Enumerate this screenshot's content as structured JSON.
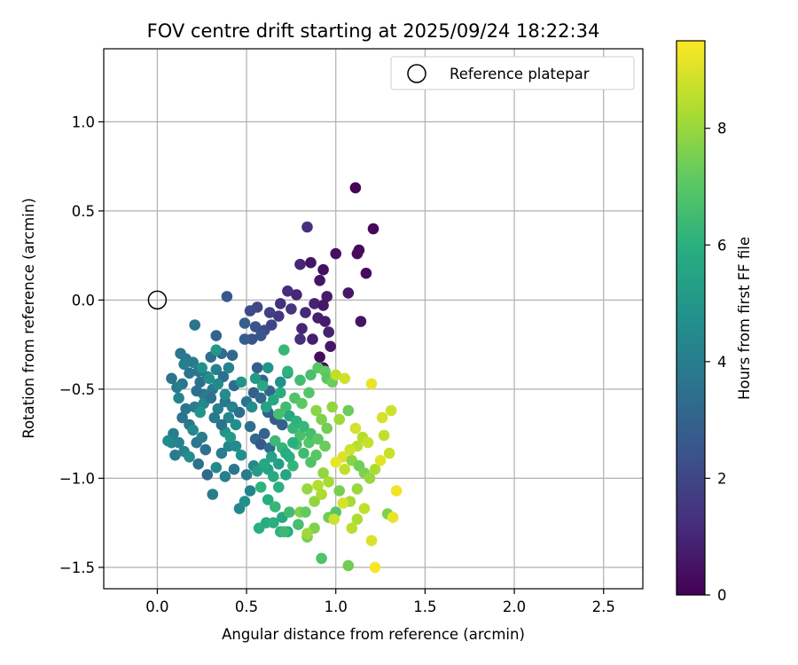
{
  "chart_data": {
    "type": "scatter",
    "title": "FOV centre drift starting at 2025/09/24 18:22:34",
    "xlabel": "Angular distance from reference (arcmin)",
    "ylabel": "Rotation from reference (arcmin)",
    "xlim": [
      -0.3,
      2.72
    ],
    "ylim": [
      -1.62,
      1.41
    ],
    "xticks": [
      0.0,
      0.5,
      1.0,
      1.5,
      2.0,
      2.5
    ],
    "xtick_labels": [
      "0.0",
      "0.5",
      "1.0",
      "1.5",
      "2.0",
      "2.5"
    ],
    "yticks": [
      -1.5,
      -1.0,
      -0.5,
      0.0,
      0.5,
      1.0
    ],
    "ytick_labels": [
      "−1.5",
      "−1.0",
      "−0.5",
      "0.0",
      "0.5",
      "1.0"
    ],
    "grid": true,
    "legend": {
      "position": "top-right",
      "label": "Reference platepar"
    },
    "reference_point": {
      "x": 0.0,
      "y": 0.0
    },
    "colorbar": {
      "label": "Hours from first FF file",
      "range": [
        0,
        9.5
      ],
      "ticks": [
        0,
        2,
        4,
        6,
        8
      ],
      "tick_labels": [
        "0",
        "2",
        "4",
        "6",
        "8"
      ],
      "colormap": "viridis"
    },
    "points": [
      [
        1.11,
        0.63,
        0.1
      ],
      [
        1.21,
        0.4,
        0.2
      ],
      [
        1.13,
        0.28,
        0.2
      ],
      [
        1.12,
        0.26,
        0.3
      ],
      [
        1.0,
        0.26,
        0.4
      ],
      [
        1.17,
        0.15,
        0.3
      ],
      [
        0.86,
        0.21,
        0.5
      ],
      [
        0.93,
        0.17,
        0.4
      ],
      [
        0.91,
        0.11,
        0.5
      ],
      [
        0.8,
        0.2,
        1.0
      ],
      [
        0.84,
        0.41,
        1.3
      ],
      [
        1.07,
        0.04,
        0.6
      ],
      [
        0.73,
        0.05,
        1.2
      ],
      [
        0.78,
        0.03,
        1.0
      ],
      [
        0.95,
        0.02,
        0.7
      ],
      [
        1.14,
        -0.12,
        0.5
      ],
      [
        0.88,
        -0.02,
        0.9
      ],
      [
        0.93,
        -0.03,
        0.6
      ],
      [
        0.69,
        -0.02,
        1.3
      ],
      [
        0.75,
        -0.05,
        1.4
      ],
      [
        0.83,
        -0.07,
        1.1
      ],
      [
        0.9,
        -0.1,
        0.8
      ],
      [
        0.94,
        -0.12,
        0.7
      ],
      [
        0.96,
        -0.18,
        0.9
      ],
      [
        0.81,
        -0.16,
        1.0
      ],
      [
        0.87,
        -0.22,
        0.8
      ],
      [
        0.97,
        -0.26,
        0.6
      ],
      [
        0.8,
        -0.22,
        1.2
      ],
      [
        0.91,
        -0.32,
        0.3
      ],
      [
        0.93,
        -0.38,
        0.4
      ],
      [
        0.68,
        -0.09,
        1.5
      ],
      [
        0.63,
        -0.07,
        1.8
      ],
      [
        0.56,
        -0.04,
        2.0
      ],
      [
        0.52,
        -0.06,
        2.1
      ],
      [
        0.55,
        -0.15,
        2.4
      ],
      [
        0.6,
        -0.17,
        2.2
      ],
      [
        0.64,
        -0.14,
        2.0
      ],
      [
        0.58,
        -0.2,
        2.6
      ],
      [
        0.53,
        -0.22,
        2.5
      ],
      [
        0.49,
        -0.22,
        2.8
      ],
      [
        0.39,
        0.02,
        2.6
      ],
      [
        0.49,
        -0.13,
        2.9
      ],
      [
        0.33,
        -0.2,
        3.0
      ],
      [
        0.42,
        -0.31,
        3.2
      ],
      [
        0.36,
        -0.3,
        3.3
      ],
      [
        0.3,
        -0.32,
        3.4
      ],
      [
        0.21,
        -0.14,
        3.6
      ],
      [
        0.13,
        -0.3,
        3.7
      ],
      [
        0.16,
        -0.33,
        3.8
      ],
      [
        0.2,
        -0.35,
        3.9
      ],
      [
        0.23,
        -0.4,
        3.7
      ],
      [
        0.18,
        -0.41,
        3.6
      ],
      [
        0.15,
        -0.36,
        4.0
      ],
      [
        0.24,
        -0.46,
        3.5
      ],
      [
        0.28,
        -0.43,
        3.8
      ],
      [
        0.33,
        -0.39,
        4.1
      ],
      [
        0.37,
        -0.43,
        3.4
      ],
      [
        0.4,
        -0.38,
        4.2
      ],
      [
        0.43,
        -0.48,
        3.3
      ],
      [
        0.31,
        -0.5,
        3.9
      ],
      [
        0.26,
        -0.53,
        4.0
      ],
      [
        0.22,
        -0.51,
        3.5
      ],
      [
        0.14,
        -0.47,
        3.8
      ],
      [
        0.11,
        -0.49,
        4.0
      ],
      [
        0.08,
        -0.44,
        3.6
      ],
      [
        0.12,
        -0.55,
        4.3
      ],
      [
        0.16,
        -0.61,
        3.7
      ],
      [
        0.21,
        -0.6,
        3.9
      ],
      [
        0.26,
        -0.58,
        4.4
      ],
      [
        0.3,
        -0.55,
        3.6
      ],
      [
        0.34,
        -0.61,
        4.1
      ],
      [
        0.38,
        -0.57,
        3.8
      ],
      [
        0.42,
        -0.6,
        4.2
      ],
      [
        0.46,
        -0.63,
        3.5
      ],
      [
        0.5,
        -0.57,
        3.7
      ],
      [
        0.56,
        -0.38,
        2.8
      ],
      [
        0.59,
        -0.45,
        3.0
      ],
      [
        0.63,
        -0.51,
        3.1
      ],
      [
        0.69,
        -0.46,
        4.8
      ],
      [
        0.73,
        -0.41,
        5.2
      ],
      [
        0.54,
        -0.52,
        2.9
      ],
      [
        0.58,
        -0.55,
        3.2
      ],
      [
        0.62,
        -0.63,
        3.0
      ],
      [
        0.66,
        -0.67,
        2.7
      ],
      [
        0.7,
        -0.7,
        2.9
      ],
      [
        0.6,
        -0.75,
        3.1
      ],
      [
        0.55,
        -0.78,
        3.2
      ],
      [
        0.58,
        -0.81,
        2.6
      ],
      [
        0.63,
        -0.83,
        3.3
      ],
      [
        0.52,
        -0.71,
        3.4
      ],
      [
        0.09,
        -0.75,
        4.0
      ],
      [
        0.12,
        -0.8,
        4.1
      ],
      [
        0.08,
        -0.8,
        4.3
      ],
      [
        0.1,
        -0.87,
        3.9
      ],
      [
        0.15,
        -0.85,
        4.2
      ],
      [
        0.18,
        -0.7,
        3.8
      ],
      [
        0.14,
        -0.66,
        3.6
      ],
      [
        0.2,
        -0.73,
        4.4
      ],
      [
        0.22,
        -0.8,
        3.7
      ],
      [
        0.25,
        -0.77,
        4.0
      ],
      [
        0.27,
        -0.84,
        3.4
      ],
      [
        0.23,
        -0.92,
        3.5
      ],
      [
        0.28,
        -0.98,
        3.2
      ],
      [
        0.31,
        -1.09,
        4.0
      ],
      [
        0.33,
        -0.94,
        4.5
      ],
      [
        0.36,
        -0.86,
        3.9
      ],
      [
        0.4,
        -0.82,
        4.3
      ],
      [
        0.44,
        -0.82,
        4.6
      ],
      [
        0.38,
        -0.99,
        4.1
      ],
      [
        0.43,
        -0.95,
        3.7
      ],
      [
        0.46,
        -1.17,
        4.4
      ],
      [
        0.49,
        -1.13,
        4.8
      ],
      [
        0.52,
        -1.07,
        4.2
      ],
      [
        0.5,
        -0.98,
        3.9
      ],
      [
        0.54,
        -0.93,
        4.5
      ],
      [
        0.38,
        -0.74,
        4.9
      ],
      [
        0.44,
        -0.7,
        4.7
      ],
      [
        0.4,
        -0.66,
        4.3
      ],
      [
        0.36,
        -0.7,
        3.6
      ],
      [
        0.32,
        -0.66,
        3.8
      ],
      [
        0.62,
        -0.95,
        5.5
      ],
      [
        0.65,
        -0.99,
        5.8
      ],
      [
        0.68,
        -1.05,
        6.0
      ],
      [
        0.72,
        -0.98,
        5.6
      ],
      [
        0.76,
        -0.93,
        6.2
      ],
      [
        0.58,
        -1.05,
        6.1
      ],
      [
        0.62,
        -1.12,
        5.9
      ],
      [
        0.66,
        -1.16,
        6.3
      ],
      [
        0.7,
        -1.22,
        5.7
      ],
      [
        0.74,
        -1.19,
        6.5
      ],
      [
        0.57,
        -1.28,
        6.0
      ],
      [
        0.61,
        -1.25,
        5.8
      ],
      [
        0.69,
        -1.3,
        6.1
      ],
      [
        0.73,
        -1.3,
        5.9
      ],
      [
        0.79,
        -1.26,
        6.6
      ],
      [
        0.84,
        -1.33,
        7.5
      ],
      [
        0.88,
        -1.28,
        7.6
      ],
      [
        0.92,
        -1.45,
        6.8
      ],
      [
        0.96,
        -1.22,
        7.4
      ],
      [
        1.0,
        -1.19,
        6.9
      ],
      [
        0.66,
        -0.79,
        6.4
      ],
      [
        0.7,
        -0.83,
        6.2
      ],
      [
        0.74,
        -0.88,
        6.0
      ],
      [
        0.78,
        -0.81,
        6.6
      ],
      [
        0.82,
        -0.86,
        6.5
      ],
      [
        0.86,
        -0.91,
        6.8
      ],
      [
        0.89,
        -0.87,
        7.0
      ],
      [
        0.85,
        -0.8,
        6.9
      ],
      [
        0.8,
        -0.76,
        6.7
      ],
      [
        0.76,
        -0.72,
        6.3
      ],
      [
        0.68,
        -0.64,
        6.6
      ],
      [
        0.72,
        -0.6,
        6.5
      ],
      [
        0.77,
        -0.55,
        6.8
      ],
      [
        0.81,
        -0.58,
        7.1
      ],
      [
        0.85,
        -0.52,
        6.9
      ],
      [
        0.71,
        -0.28,
        6.3
      ],
      [
        0.73,
        -0.4,
        6.1
      ],
      [
        0.8,
        -0.45,
        6.5
      ],
      [
        0.86,
        -0.42,
        6.7
      ],
      [
        0.9,
        -0.38,
        7.0
      ],
      [
        0.94,
        -0.4,
        7.2
      ],
      [
        0.95,
        -0.44,
        7.0
      ],
      [
        0.98,
        -0.46,
        7.3
      ],
      [
        1.0,
        -0.42,
        8.6
      ],
      [
        1.05,
        -0.44,
        8.8
      ],
      [
        0.89,
        -0.62,
        7.8
      ],
      [
        0.92,
        -0.67,
        7.6
      ],
      [
        0.95,
        -0.72,
        7.4
      ],
      [
        0.98,
        -0.6,
        7.9
      ],
      [
        1.02,
        -0.67,
        8.1
      ],
      [
        1.07,
        -0.62,
        7.3
      ],
      [
        1.11,
        -0.72,
        8.9
      ],
      [
        1.15,
        -0.77,
        8.4
      ],
      [
        1.18,
        -0.8,
        8.7
      ],
      [
        1.12,
        -0.82,
        8.5
      ],
      [
        1.08,
        -0.84,
        8.8
      ],
      [
        1.04,
        -0.88,
        9.0
      ],
      [
        1.0,
        -0.91,
        9.2
      ],
      [
        1.05,
        -0.95,
        8.6
      ],
      [
        1.09,
        -0.9,
        7.8
      ],
      [
        1.13,
        -0.93,
        7.4
      ],
      [
        1.16,
        -0.97,
        7.6
      ],
      [
        1.19,
        -1.0,
        8.0
      ],
      [
        1.22,
        -0.95,
        8.3
      ],
      [
        1.25,
        -0.9,
        9.1
      ],
      [
        1.2,
        -0.47,
        9.2
      ],
      [
        1.26,
        -0.66,
        8.9
      ],
      [
        1.31,
        -0.62,
        8.8
      ],
      [
        1.27,
        -0.76,
        8.6
      ],
      [
        1.3,
        -0.86,
        8.7
      ],
      [
        0.93,
        -0.97,
        7.9
      ],
      [
        0.96,
        -1.02,
        8.2
      ],
      [
        0.9,
        -1.04,
        8.4
      ],
      [
        0.84,
        -1.06,
        8.0
      ],
      [
        0.88,
        -1.13,
        7.9
      ],
      [
        0.92,
        -1.09,
        8.3
      ],
      [
        1.02,
        -1.07,
        7.5
      ],
      [
        1.08,
        -1.13,
        8.2
      ],
      [
        1.12,
        -1.06,
        8.0
      ],
      [
        1.16,
        -1.17,
        8.6
      ],
      [
        1.04,
        -1.14,
        8.9
      ],
      [
        0.99,
        -1.23,
        8.8
      ],
      [
        1.09,
        -1.28,
        8.5
      ],
      [
        1.12,
        -1.23,
        8.3
      ],
      [
        1.2,
        -1.35,
        9.0
      ],
      [
        1.29,
        -1.2,
        7.6
      ],
      [
        1.32,
        -1.22,
        9.2
      ],
      [
        1.34,
        -1.07,
        9.3
      ],
      [
        1.22,
        -1.5,
        9.4
      ],
      [
        1.07,
        -1.49,
        7.4
      ],
      [
        0.84,
        -1.31,
        8.1
      ],
      [
        0.8,
        -1.19,
        7.7
      ],
      [
        0.83,
        -1.19,
        7.2
      ],
      [
        0.71,
        -1.3,
        6.4
      ],
      [
        0.65,
        -1.25,
        6.0
      ],
      [
        0.56,
        -0.96,
        5.2
      ],
      [
        0.6,
        -0.92,
        5.6
      ],
      [
        0.64,
        -0.88,
        5.5
      ],
      [
        0.68,
        -0.92,
        5.3
      ],
      [
        0.72,
        -0.86,
        5.9
      ],
      [
        0.76,
        -0.8,
        6.0
      ],
      [
        0.61,
        -0.6,
        5.4
      ],
      [
        0.65,
        -0.56,
        5.6
      ],
      [
        0.69,
        -0.52,
        5.9
      ],
      [
        0.59,
        -0.48,
        5.7
      ],
      [
        0.38,
        -0.53,
        4.6
      ],
      [
        0.34,
        -0.47,
        4.5
      ],
      [
        0.29,
        -0.44,
        4.7
      ],
      [
        0.25,
        -0.38,
        4.8
      ],
      [
        0.33,
        -0.28,
        5.0
      ],
      [
        0.06,
        -0.79,
        4.5
      ],
      [
        0.18,
        -0.88,
        4.6
      ],
      [
        0.24,
        -0.63,
        4.9
      ],
      [
        0.41,
        -0.77,
        5.1
      ],
      [
        0.47,
        -0.87,
        4.7
      ],
      [
        0.53,
        -0.6,
        4.6
      ],
      [
        0.47,
        -0.46,
        4.9
      ],
      [
        0.55,
        -0.44,
        5.1
      ],
      [
        0.62,
        -0.38,
        4.9
      ],
      [
        0.74,
        -0.65,
        5.7
      ],
      [
        0.78,
        -0.68,
        6.1
      ],
      [
        0.82,
        -0.71,
        6.3
      ],
      [
        0.86,
        -0.75,
        6.6
      ],
      [
        0.9,
        -0.78,
        7.1
      ],
      [
        0.94,
        -0.82,
        7.3
      ]
    ]
  }
}
